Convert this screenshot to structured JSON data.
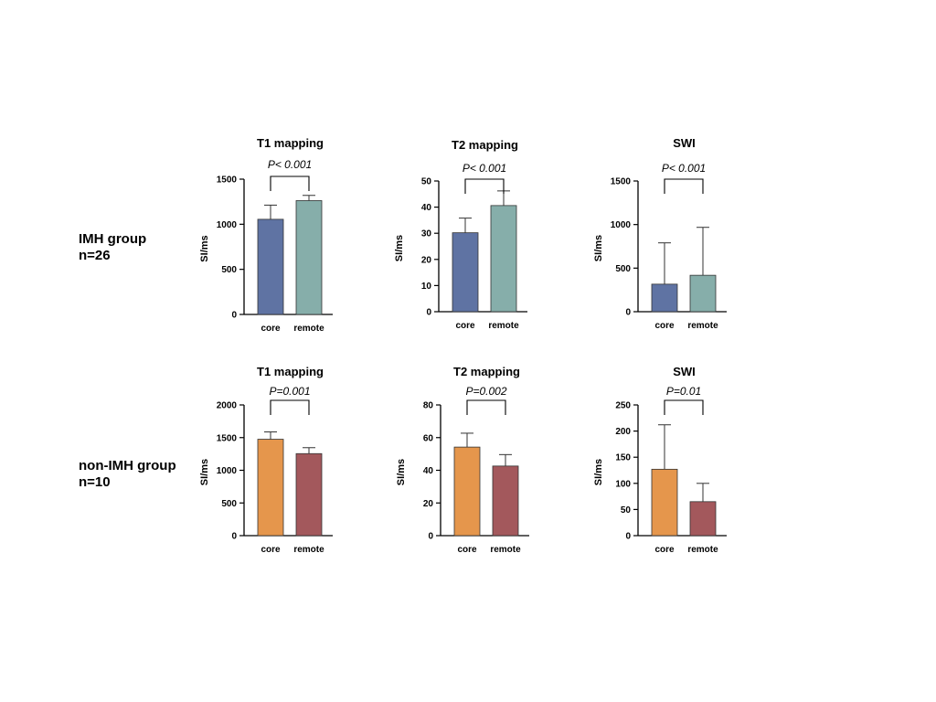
{
  "groups": [
    {
      "line1": "IMH group",
      "line2": "n=26"
    },
    {
      "line1": "non-IMH group",
      "line2": "n=10"
    }
  ],
  "colors": {
    "core_imh": "#5f73a3",
    "remote_imh": "#86aeaa",
    "core_nonimh": "#e5964c",
    "remote_nonimh": "#a3585c",
    "axis": "#000000"
  },
  "chart_data": [
    {
      "type": "bar",
      "group": "IMH group",
      "title": "T1 mapping",
      "ylabel": "SI/ms",
      "categories": [
        "core",
        "remote"
      ],
      "values": [
        1055,
        1262
      ],
      "errors": [
        157,
        58
      ],
      "ylim": [
        0,
        1500
      ],
      "yticks": [
        0,
        500,
        1000,
        1500
      ],
      "pvalue": "P< 0.001"
    },
    {
      "type": "bar",
      "group": "IMH group",
      "title": "T2 mapping",
      "ylabel": "SI/ms",
      "categories": [
        "core",
        "remote"
      ],
      "values": [
        30.2,
        40.6
      ],
      "errors": [
        5.6,
        5.6
      ],
      "ylim": [
        0,
        50
      ],
      "yticks": [
        0,
        10,
        20,
        30,
        40,
        50
      ],
      "pvalue": "P< 0.001"
    },
    {
      "type": "bar",
      "group": "IMH group",
      "title": "SWI",
      "ylabel": "SI/ms",
      "categories": [
        "core",
        "remote"
      ],
      "values": [
        316,
        418
      ],
      "errors": [
        474,
        550
      ],
      "ylim": [
        0,
        1500
      ],
      "yticks": [
        0,
        500,
        1000,
        1500
      ],
      "pvalue": "P< 0.001"
    },
    {
      "type": "bar",
      "group": "non-IMH group",
      "title": "T1 mapping",
      "ylabel": "SI/ms",
      "categories": [
        "core",
        "remote"
      ],
      "values": [
        1475,
        1255
      ],
      "errors": [
        112,
        91
      ],
      "ylim": [
        0,
        2000
      ],
      "yticks": [
        0,
        500,
        1000,
        1500,
        2000
      ],
      "pvalue": "P=0.001"
    },
    {
      "type": "bar",
      "group": "non-IMH group",
      "title": "T2 mapping",
      "ylabel": "SI/ms",
      "categories": [
        "core",
        "remote"
      ],
      "values": [
        54.2,
        42.6
      ],
      "errors": [
        8.5,
        7.0
      ],
      "ylim": [
        0,
        80
      ],
      "yticks": [
        0,
        20,
        40,
        60,
        80
      ],
      "pvalue": "P=0.002"
    },
    {
      "type": "bar",
      "group": "non-IMH group",
      "title": "SWI",
      "ylabel": "SI/ms",
      "categories": [
        "core",
        "remote"
      ],
      "values": [
        127,
        65
      ],
      "errors": [
        85,
        35
      ],
      "ylim": [
        0,
        250
      ],
      "yticks": [
        0,
        50,
        100,
        150,
        200,
        250
      ],
      "pvalue": "P=0.01"
    }
  ]
}
